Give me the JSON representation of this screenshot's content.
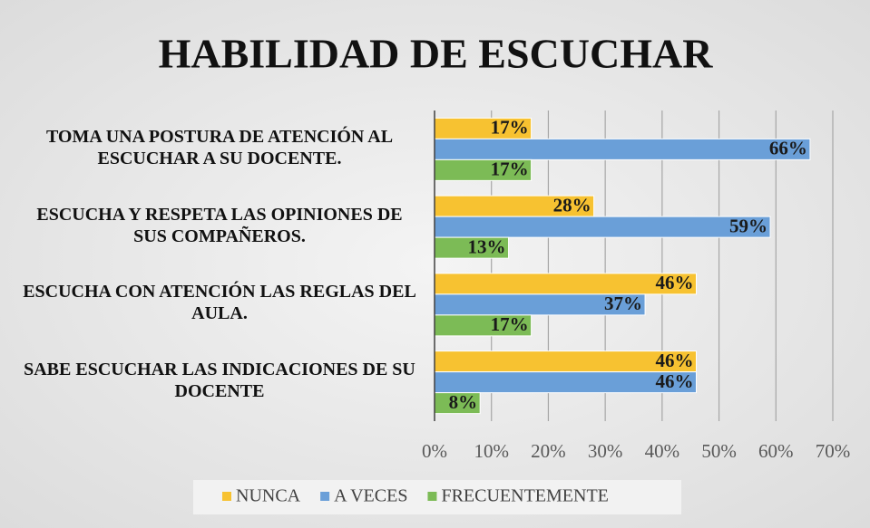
{
  "chart_data": {
    "type": "bar",
    "orientation": "horizontal",
    "title": "HABILIDAD DE ESCUCHAR",
    "categories": [
      "TOMA UNA POSTURA DE ATENCIÓN AL ESCUCHAR A SU DOCENTE.",
      "ESCUCHA Y RESPETA LAS OPINIONES DE SUS COMPAÑEROS.",
      "ESCUCHA CON ATENCIÓN LAS REGLAS DEL AULA.",
      "SABE ESCUCHAR LAS INDICACIONES DE SU DOCENTE"
    ],
    "series": [
      {
        "name": "NUNCA",
        "color": "#f7c231",
        "values": [
          17,
          28,
          46,
          46
        ],
        "value_labels": [
          "17%",
          "28%",
          "46%",
          "46%"
        ]
      },
      {
        "name": "A VECES",
        "color": "#6a9fd8",
        "values": [
          66,
          59,
          37,
          46
        ],
        "value_labels": [
          "66%",
          "59%",
          "37%",
          "46%"
        ]
      },
      {
        "name": "FRECUENTEMENTE",
        "color": "#7cbb56",
        "values": [
          17,
          13,
          17,
          8
        ],
        "value_labels": [
          "17%",
          "13%",
          "17%",
          "8%"
        ]
      }
    ],
    "xlim": [
      0,
      70
    ],
    "xticks": [
      {
        "value": 0,
        "label": "0%"
      },
      {
        "value": 10,
        "label": "10%"
      },
      {
        "value": 20,
        "label": "20%"
      },
      {
        "value": 30,
        "label": "30%"
      },
      {
        "value": 40,
        "label": "40%"
      },
      {
        "value": 50,
        "label": "50%"
      },
      {
        "value": 60,
        "label": "60%"
      },
      {
        "value": 70,
        "label": "70%"
      }
    ],
    "grid": true,
    "legend": "bottom"
  }
}
